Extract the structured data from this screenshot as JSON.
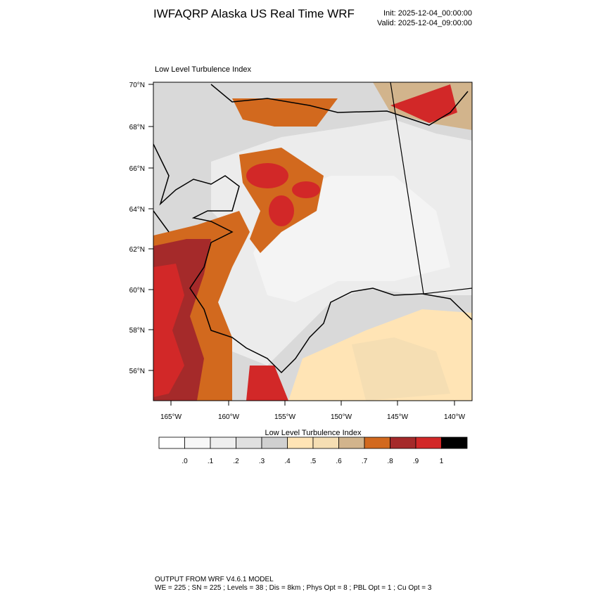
{
  "header": {
    "title": "IWFAQRP Alaska US Real Time WRF",
    "init": "Init: 2025-12-04_00:00:00",
    "valid": "Valid: 2025-12-04_09:00:00"
  },
  "map": {
    "label": "Low Level Turbulence Index",
    "lat_labels": [
      "70°N",
      "68°N",
      "66°N",
      "64°N",
      "62°N",
      "60°N",
      "58°N",
      "56°N"
    ],
    "lon_labels": [
      "165°W",
      "160°W",
      "155°W",
      "150°W",
      "145°W",
      "140°W"
    ]
  },
  "colorbar": {
    "title": "Low Level Turbulence Index",
    "colors": [
      "#ffffff",
      "#f7f7f7",
      "#efefef",
      "#e0e0e0",
      "#d0d0d0",
      "#ffe4b5",
      "#f5deb3",
      "#d2b48c",
      "#d2691e",
      "#a52a2a",
      "#d22828",
      "#000000"
    ],
    "labels": [
      ".0",
      ".1",
      ".2",
      ".3",
      ".4",
      ".5",
      ".6",
      ".7",
      ".8",
      ".9",
      "1"
    ]
  },
  "footer": {
    "line1": "OUTPUT FROM WRF V4.6.1 MODEL",
    "line2": "WE = 225 ; SN = 225 ; Levels = 38 ; Dis = 8km ; Phys Opt = 8 ; PBL Opt = 1 ; Cu Opt = 3"
  }
}
